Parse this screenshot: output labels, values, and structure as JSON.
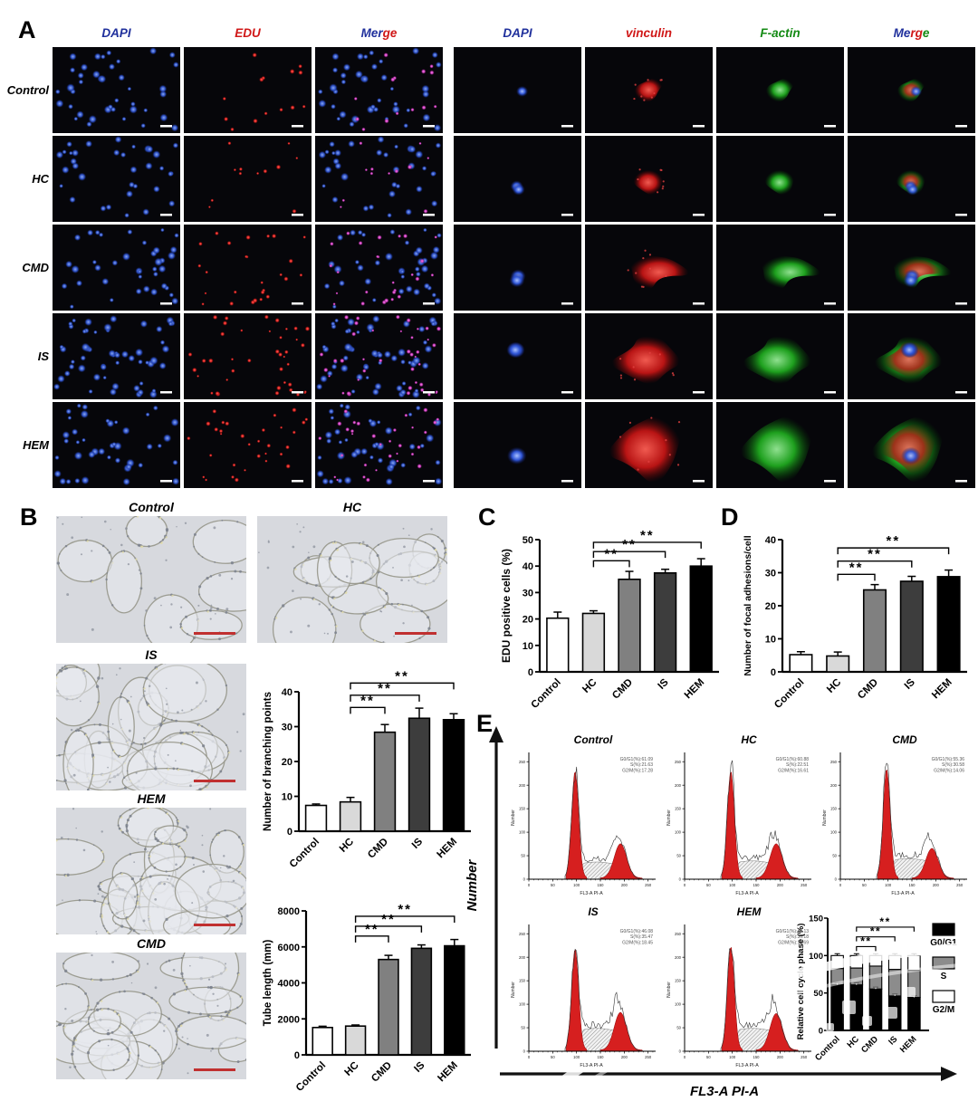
{
  "panelA": {
    "label": "A",
    "row_labels": [
      "Control",
      "HC",
      "CMD",
      "IS",
      "HEM"
    ],
    "headers": [
      {
        "parts": [
          {
            "t": "DAPI",
            "c": "#20309c"
          }
        ]
      },
      {
        "parts": [
          {
            "t": "EDU",
            "c": "#d01818"
          }
        ]
      },
      {
        "parts": [
          {
            "t": "Mer",
            "c": "#20309c"
          },
          {
            "t": "ge",
            "c": "#d01818"
          }
        ]
      },
      {
        "parts": [
          {
            "t": "DAPI",
            "c": "#20309c"
          }
        ]
      },
      {
        "parts": [
          {
            "t": "vinculin",
            "c": "#d01818"
          }
        ]
      },
      {
        "parts": [
          {
            "t": "F-actin",
            "c": "#138a13"
          }
        ]
      },
      {
        "parts": [
          {
            "t": "Me",
            "c": "#20309c"
          },
          {
            "t": "rg",
            "c": "#d01818"
          },
          {
            "t": "e",
            "c": "#138a13"
          }
        ]
      }
    ],
    "col_types": [
      "dapi-field",
      "edu-field",
      "merge-field",
      "dapi-cell",
      "vinculin-cell",
      "factin-cell",
      "merge-cell"
    ],
    "visual": {
      "dapi_counts": [
        40,
        34,
        38,
        55,
        42
      ],
      "edu_counts": [
        14,
        12,
        26,
        40,
        32
      ],
      "nuclei_per_cell": [
        1,
        2,
        2,
        2,
        1
      ],
      "cell_scale": [
        0.55,
        0.62,
        0.85,
        1.05,
        1.2
      ]
    }
  },
  "panelB": {
    "label": "B",
    "images": [
      {
        "name": "Control",
        "rings": 7
      },
      {
        "name": "HC",
        "rings": 11
      },
      {
        "name": "IS",
        "rings": 20
      },
      {
        "name": "HEM",
        "rings": 22
      },
      {
        "name": "CMD",
        "rings": 20
      }
    ]
  },
  "panelC": {
    "label": "C"
  },
  "panelD": {
    "label": "D"
  },
  "panelE": {
    "label": "E",
    "axis_x_label": "FL3-A PI-A",
    "axis_y_label": "Number"
  },
  "colors": {
    "bar_fills": [
      "#ffffff",
      "#d9d9d9",
      "#808080",
      "#3d3d3d",
      "#000000"
    ],
    "flow_fill": "#d61f1f",
    "scalebar_a": "#ffffff",
    "scalebar_b": "#c03030",
    "accent_blue": "#20309c",
    "accent_red": "#d01818",
    "accent_green": "#138a13"
  },
  "chart_data": [
    {
      "id": "branching",
      "type": "bar",
      "title": "",
      "ylabel": "Number of branching points",
      "categories": [
        "Control",
        "HC",
        "CMD",
        "IS",
        "HEM"
      ],
      "values": [
        7.4,
        8.4,
        28.4,
        32.4,
        32.0
      ],
      "errors": [
        0.4,
        1.3,
        2.2,
        2.9,
        1.7
      ],
      "ylim": [
        0,
        40
      ],
      "yticks": [
        0,
        10,
        20,
        30,
        40
      ],
      "significance": [
        {
          "a": 1,
          "b": 2,
          "y": 35.5,
          "label": "**"
        },
        {
          "a": 1,
          "b": 3,
          "y": 39.0,
          "label": "**"
        },
        {
          "a": 1,
          "b": 4,
          "y": 42.5,
          "label": "**"
        }
      ]
    },
    {
      "id": "tube",
      "type": "bar",
      "title": "",
      "ylabel": "Tube length (mm)",
      "categories": [
        "Control",
        "HC",
        "CMD",
        "IS",
        "HEM"
      ],
      "values": [
        1520,
        1600,
        5300,
        5920,
        6060
      ],
      "errors": [
        70,
        60,
        230,
        190,
        350
      ],
      "ylim": [
        0,
        8000
      ],
      "yticks": [
        0,
        2000,
        4000,
        6000,
        8000
      ],
      "significance": [
        {
          "a": 1,
          "b": 2,
          "y": 6600,
          "label": "**"
        },
        {
          "a": 1,
          "b": 3,
          "y": 7150,
          "label": "**"
        },
        {
          "a": 1,
          "b": 4,
          "y": 7700,
          "label": "**"
        }
      ]
    },
    {
      "id": "edu",
      "type": "bar",
      "title": "",
      "ylabel": "EDU positive cells (%)",
      "categories": [
        "Control",
        "HC",
        "CMD",
        "IS",
        "HEM"
      ],
      "values": [
        20.3,
        22.1,
        35.0,
        37.4,
        40.0
      ],
      "errors": [
        2.3,
        1.0,
        3.0,
        1.4,
        2.8
      ],
      "ylim": [
        0,
        50
      ],
      "yticks": [
        0,
        10,
        20,
        30,
        40,
        50
      ],
      "significance": [
        {
          "a": 1,
          "b": 2,
          "y": 42.0,
          "label": "**"
        },
        {
          "a": 1,
          "b": 3,
          "y": 45.5,
          "label": "**"
        },
        {
          "a": 1,
          "b": 4,
          "y": 49.0,
          "label": "**"
        }
      ]
    },
    {
      "id": "focal",
      "type": "bar",
      "title": "",
      "ylabel": "Number of focal adhesions/cell",
      "categories": [
        "Control",
        "HC",
        "CMD",
        "IS",
        "HEM"
      ],
      "values": [
        5.2,
        4.8,
        24.8,
        27.4,
        28.8
      ],
      "errors": [
        0.9,
        1.2,
        1.6,
        1.5,
        2.0
      ],
      "ylim": [
        0,
        40
      ],
      "yticks": [
        0,
        10,
        20,
        30,
        40
      ],
      "significance": [
        {
          "a": 1,
          "b": 2,
          "y": 29.5,
          "label": "**"
        },
        {
          "a": 1,
          "b": 3,
          "y": 33.5,
          "label": "**"
        },
        {
          "a": 1,
          "b": 4,
          "y": 37.5,
          "label": "**"
        }
      ]
    },
    {
      "id": "cell_cycle",
      "type": "stacked-bar",
      "title": "",
      "ylabel": "Relative cell cycle phase (%)",
      "categories": [
        "Control",
        "HC",
        "CMD",
        "IS",
        "HEM"
      ],
      "series": [
        {
          "name": "G0/G1",
          "color": "#000000",
          "values": [
            61.09,
            60.88,
            55.36,
            46.08,
            44.13
          ]
        },
        {
          "name": "S",
          "color": "#8c8c8c",
          "values": [
            21.63,
            22.51,
            30.58,
            35.47,
            36.18
          ]
        },
        {
          "name": "G2/M",
          "color": "#ffffff",
          "values": [
            17.28,
            16.61,
            14.06,
            18.45,
            19.69
          ]
        }
      ],
      "ylim": [
        0,
        150
      ],
      "yticks": [
        0,
        50,
        100,
        150
      ],
      "legend_position": "right",
      "significance": [
        {
          "a": 1,
          "b": 2,
          "y": 112,
          "label": "**"
        },
        {
          "a": 1,
          "b": 3,
          "y": 125,
          "label": "**"
        },
        {
          "a": 1,
          "b": 4,
          "y": 138,
          "label": "**"
        }
      ]
    },
    {
      "id": "flow_cytometry",
      "type": "histogram-grid",
      "xlabel": "FL3-A PI-A",
      "ylabel": "Number",
      "xticks": [
        0,
        50,
        100,
        150,
        200,
        250
      ],
      "yticks": [
        0,
        50,
        100,
        150,
        200,
        250
      ],
      "plots": [
        {
          "name": "Control",
          "stats": [
            "G0/G1(%):61.09",
            "S(%):21.63",
            "G2/M(%):17.28"
          ],
          "g1": 0.93,
          "g2": 0.3,
          "s": 0.1
        },
        {
          "name": "HC",
          "stats": [
            "G0/G1(%):60.88",
            "S(%):22.51",
            "G2/M(%):16.61"
          ],
          "g1": 0.93,
          "g2": 0.3,
          "s": 0.11
        },
        {
          "name": "CMD",
          "stats": [
            "G0/G1(%):55.36",
            "S(%):30.58",
            "G2/M(%):14.06"
          ],
          "g1": 0.95,
          "g2": 0.26,
          "s": 0.13
        },
        {
          "name": "IS",
          "stats": [
            "G0/G1(%):46.08",
            "S(%):35.47",
            "G2/M(%):18.45"
          ],
          "g1": 0.88,
          "g2": 0.33,
          "s": 0.15
        },
        {
          "name": "HEM",
          "stats": [
            "G0/G1(%):44.13",
            "S(%):36.18",
            "G2/M(%):19.69"
          ],
          "g1": 0.9,
          "g2": 0.32,
          "s": 0.15
        }
      ]
    }
  ]
}
